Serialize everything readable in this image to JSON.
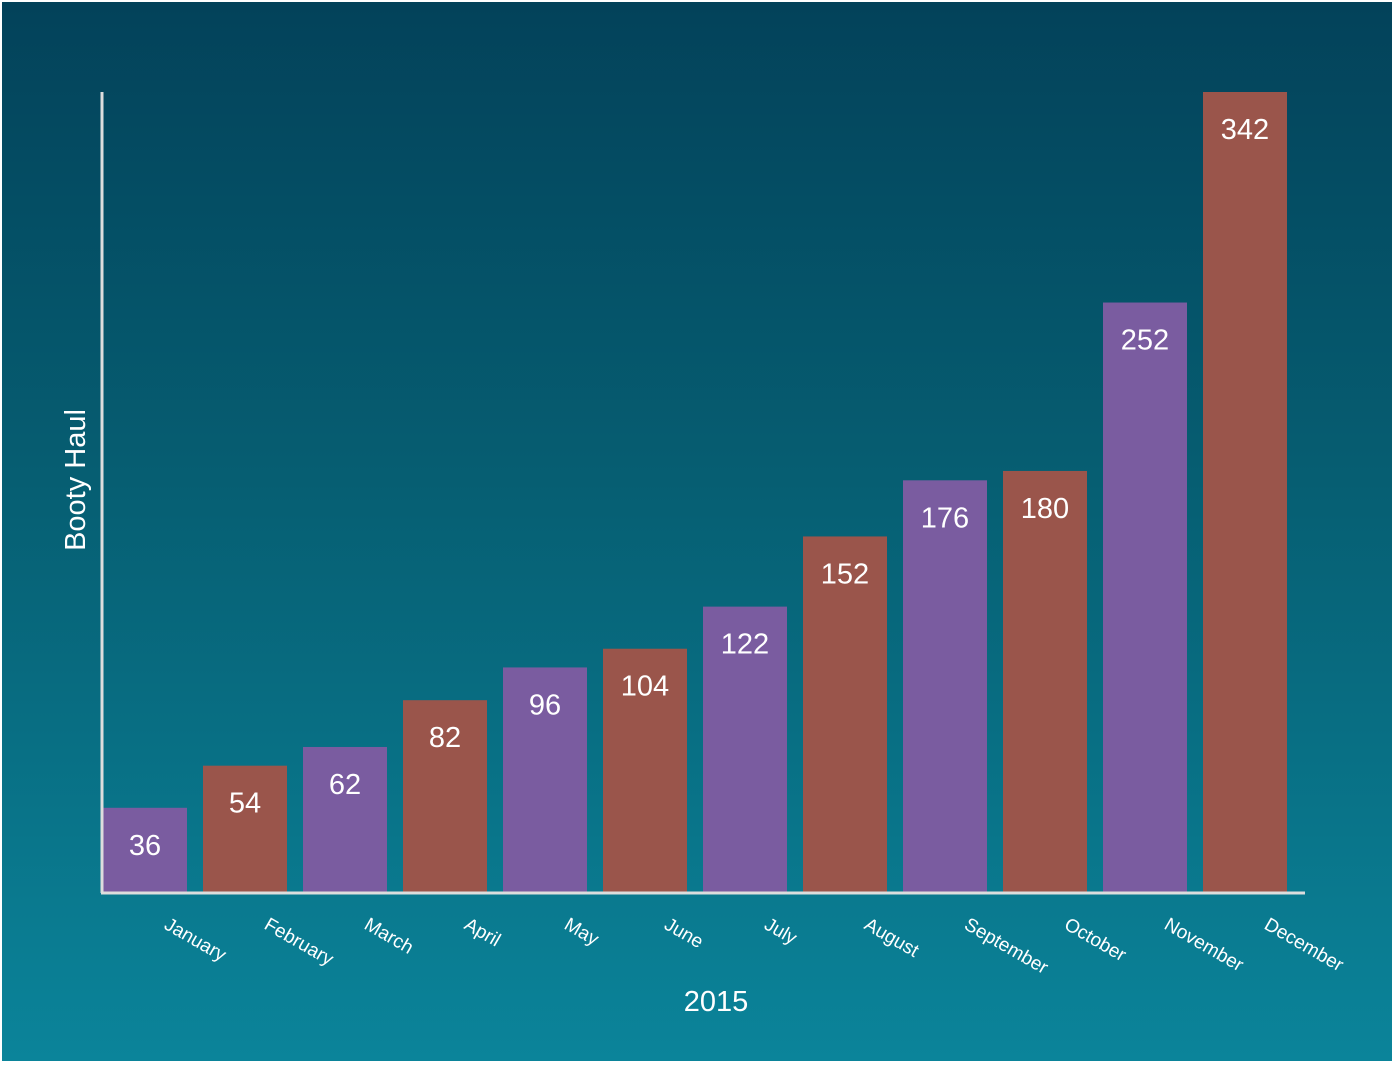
{
  "chart_data": {
    "type": "bar",
    "title": "",
    "xlabel": "2015",
    "ylabel": "Booty Haul",
    "categories": [
      "January",
      "February",
      "March",
      "April",
      "May",
      "June",
      "July",
      "August",
      "September",
      "October",
      "November",
      "December"
    ],
    "values": [
      36,
      54,
      62,
      82,
      96,
      104,
      122,
      152,
      176,
      180,
      252,
      342
    ],
    "ylim": [
      0,
      342
    ],
    "grid": false,
    "legend": "none",
    "bar_colors": [
      "#7a5ca0",
      "#9a554b"
    ],
    "axis_color": "#dddddd"
  }
}
